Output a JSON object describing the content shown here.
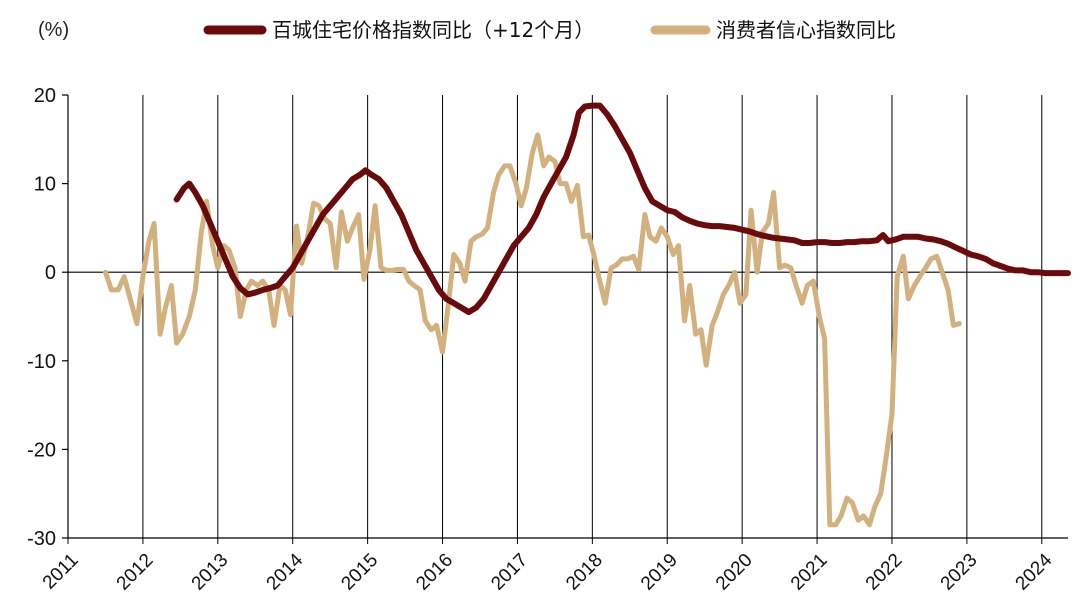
{
  "chart_data": {
    "type": "line",
    "unit_label": "(%)",
    "ylim": [
      -30,
      20
    ],
    "yticks": [
      "20",
      "10",
      "0",
      "-10",
      "-20",
      "-30"
    ],
    "ytick_values": [
      20,
      10,
      0,
      -10,
      -20,
      -30
    ],
    "xlim": [
      2011,
      2024.35
    ],
    "xticks": [
      "2011",
      "2012",
      "2013",
      "2014",
      "2015",
      "2016",
      "2017",
      "2018",
      "2019",
      "2020",
      "2021",
      "2022",
      "2023",
      "2024"
    ],
    "xtick_values": [
      2011,
      2012,
      2013,
      2014,
      2015,
      2016,
      2017,
      2018,
      2019,
      2020,
      2021,
      2022,
      2023,
      2024
    ],
    "legend_position": "top",
    "series": [
      {
        "name": "百城住宅价格指数同比（+12个月）",
        "color": "#6b0a0a",
        "points": [
          [
            2012.45,
            8.2
          ],
          [
            2012.55,
            9.5
          ],
          [
            2012.62,
            10.0
          ],
          [
            2012.7,
            9.0
          ],
          [
            2012.8,
            7.5
          ],
          [
            2012.9,
            5.5
          ],
          [
            2013.0,
            3.5
          ],
          [
            2013.1,
            1.5
          ],
          [
            2013.2,
            -0.5
          ],
          [
            2013.3,
            -1.8
          ],
          [
            2013.4,
            -2.5
          ],
          [
            2013.5,
            -2.3
          ],
          [
            2013.6,
            -2.0
          ],
          [
            2013.7,
            -1.8
          ],
          [
            2013.8,
            -1.5
          ],
          [
            2013.9,
            -0.5
          ],
          [
            2014.0,
            0.5
          ],
          [
            2014.1,
            2.0
          ],
          [
            2014.2,
            3.5
          ],
          [
            2014.3,
            5.0
          ],
          [
            2014.4,
            6.5
          ],
          [
            2014.5,
            7.5
          ],
          [
            2014.6,
            8.5
          ],
          [
            2014.7,
            9.5
          ],
          [
            2014.8,
            10.5
          ],
          [
            2014.9,
            11.0
          ],
          [
            2014.97,
            11.5
          ],
          [
            2015.05,
            11.0
          ],
          [
            2015.15,
            10.5
          ],
          [
            2015.25,
            9.5
          ],
          [
            2015.35,
            8.0
          ],
          [
            2015.45,
            6.5
          ],
          [
            2015.55,
            4.5
          ],
          [
            2015.65,
            2.5
          ],
          [
            2015.75,
            1.0
          ],
          [
            2015.85,
            -0.5
          ],
          [
            2015.95,
            -2.0
          ],
          [
            2016.05,
            -3.0
          ],
          [
            2016.15,
            -3.5
          ],
          [
            2016.25,
            -4.0
          ],
          [
            2016.35,
            -4.5
          ],
          [
            2016.45,
            -4.0
          ],
          [
            2016.55,
            -3.0
          ],
          [
            2016.65,
            -1.5
          ],
          [
            2016.75,
            0.0
          ],
          [
            2016.85,
            1.5
          ],
          [
            2016.95,
            3.0
          ],
          [
            2017.05,
            4.0
          ],
          [
            2017.15,
            5.0
          ],
          [
            2017.25,
            6.5
          ],
          [
            2017.35,
            8.5
          ],
          [
            2017.45,
            10.0
          ],
          [
            2017.55,
            11.5
          ],
          [
            2017.65,
            13.0
          ],
          [
            2017.75,
            15.5
          ],
          [
            2017.82,
            18.0
          ],
          [
            2017.9,
            18.7
          ],
          [
            2018.0,
            18.8
          ],
          [
            2018.1,
            18.8
          ],
          [
            2018.2,
            17.8
          ],
          [
            2018.3,
            16.5
          ],
          [
            2018.4,
            15.0
          ],
          [
            2018.5,
            13.5
          ],
          [
            2018.6,
            11.5
          ],
          [
            2018.7,
            9.5
          ],
          [
            2018.8,
            8.0
          ],
          [
            2018.9,
            7.5
          ],
          [
            2019.0,
            7.0
          ],
          [
            2019.1,
            6.8
          ],
          [
            2019.2,
            6.2
          ],
          [
            2019.3,
            5.8
          ],
          [
            2019.4,
            5.5
          ],
          [
            2019.5,
            5.3
          ],
          [
            2019.6,
            5.2
          ],
          [
            2019.7,
            5.2
          ],
          [
            2019.8,
            5.1
          ],
          [
            2019.9,
            5.0
          ],
          [
            2020.0,
            4.8
          ],
          [
            2020.1,
            4.6
          ],
          [
            2020.2,
            4.3
          ],
          [
            2020.3,
            4.1
          ],
          [
            2020.4,
            3.9
          ],
          [
            2020.5,
            3.8
          ],
          [
            2020.6,
            3.7
          ],
          [
            2020.7,
            3.6
          ],
          [
            2020.8,
            3.3
          ],
          [
            2020.9,
            3.3
          ],
          [
            2021.0,
            3.4
          ],
          [
            2021.1,
            3.4
          ],
          [
            2021.2,
            3.3
          ],
          [
            2021.3,
            3.3
          ],
          [
            2021.4,
            3.4
          ],
          [
            2021.5,
            3.4
          ],
          [
            2021.6,
            3.5
          ],
          [
            2021.7,
            3.5
          ],
          [
            2021.8,
            3.6
          ],
          [
            2021.88,
            4.2
          ],
          [
            2021.95,
            3.5
          ],
          [
            2022.05,
            3.7
          ],
          [
            2022.15,
            4.0
          ],
          [
            2022.25,
            4.0
          ],
          [
            2022.35,
            4.0
          ],
          [
            2022.45,
            3.8
          ],
          [
            2022.55,
            3.7
          ],
          [
            2022.65,
            3.5
          ],
          [
            2022.75,
            3.2
          ],
          [
            2022.85,
            2.8
          ],
          [
            2022.95,
            2.4
          ],
          [
            2023.05,
            2.0
          ],
          [
            2023.15,
            1.8
          ],
          [
            2023.25,
            1.5
          ],
          [
            2023.35,
            1.0
          ],
          [
            2023.45,
            0.7
          ],
          [
            2023.55,
            0.4
          ],
          [
            2023.65,
            0.2
          ],
          [
            2023.75,
            0.2
          ],
          [
            2023.85,
            0.0
          ],
          [
            2023.95,
            0.0
          ],
          [
            2024.05,
            -0.1
          ],
          [
            2024.2,
            -0.1
          ],
          [
            2024.35,
            -0.1
          ]
        ]
      },
      {
        "name": "消费者信心指数同比",
        "color": "#d2b17f",
        "points": [
          [
            2011.5,
            0.0
          ],
          [
            2011.58,
            -2.0
          ],
          [
            2011.67,
            -2.0
          ],
          [
            2011.75,
            -0.5
          ],
          [
            2011.83,
            -3.0
          ],
          [
            2011.92,
            -5.8
          ],
          [
            2012.0,
            -0.5
          ],
          [
            2012.08,
            3.5
          ],
          [
            2012.15,
            5.5
          ],
          [
            2012.23,
            -7.0
          ],
          [
            2012.3,
            -4.0
          ],
          [
            2012.38,
            -1.5
          ],
          [
            2012.45,
            -8.0
          ],
          [
            2012.53,
            -7.0
          ],
          [
            2012.62,
            -5.0
          ],
          [
            2012.7,
            -2.0
          ],
          [
            2012.78,
            4.5
          ],
          [
            2012.85,
            8.0
          ],
          [
            2012.93,
            3.0
          ],
          [
            2013.0,
            0.5
          ],
          [
            2013.08,
            3.0
          ],
          [
            2013.15,
            2.5
          ],
          [
            2013.23,
            0.5
          ],
          [
            2013.3,
            -5.0
          ],
          [
            2013.38,
            -2.0
          ],
          [
            2013.45,
            -1.0
          ],
          [
            2013.53,
            -1.5
          ],
          [
            2013.6,
            -1.0
          ],
          [
            2013.68,
            -2.0
          ],
          [
            2013.75,
            -6.0
          ],
          [
            2013.83,
            -1.5
          ],
          [
            2013.9,
            -2.0
          ],
          [
            2013.97,
            -4.8
          ],
          [
            2014.05,
            5.2
          ],
          [
            2014.12,
            1.0
          ],
          [
            2014.2,
            4.0
          ],
          [
            2014.28,
            7.8
          ],
          [
            2014.35,
            7.5
          ],
          [
            2014.43,
            6.0
          ],
          [
            2014.5,
            5.5
          ],
          [
            2014.58,
            0.5
          ],
          [
            2014.65,
            6.8
          ],
          [
            2014.73,
            3.5
          ],
          [
            2014.8,
            5.0
          ],
          [
            2014.88,
            6.5
          ],
          [
            2014.95,
            -0.8
          ],
          [
            2015.03,
            2.5
          ],
          [
            2015.1,
            7.5
          ],
          [
            2015.18,
            0.5
          ],
          [
            2015.25,
            0.2
          ],
          [
            2015.33,
            0.2
          ],
          [
            2015.4,
            0.3
          ],
          [
            2015.48,
            0.3
          ],
          [
            2015.55,
            -1.0
          ],
          [
            2015.62,
            -1.5
          ],
          [
            2015.7,
            -2.0
          ],
          [
            2015.77,
            -5.5
          ],
          [
            2015.85,
            -6.5
          ],
          [
            2015.92,
            -6.0
          ],
          [
            2016.0,
            -9.0
          ],
          [
            2016.08,
            -3.5
          ],
          [
            2016.15,
            2.0
          ],
          [
            2016.23,
            1.0
          ],
          [
            2016.3,
            -1.0
          ],
          [
            2016.38,
            3.5
          ],
          [
            2016.45,
            4.0
          ],
          [
            2016.53,
            4.3
          ],
          [
            2016.6,
            5.0
          ],
          [
            2016.68,
            9.0
          ],
          [
            2016.75,
            11.0
          ],
          [
            2016.83,
            12.0
          ],
          [
            2016.9,
            12.0
          ],
          [
            2016.98,
            10.0
          ],
          [
            2017.05,
            7.5
          ],
          [
            2017.12,
            9.5
          ],
          [
            2017.2,
            13.5
          ],
          [
            2017.27,
            15.5
          ],
          [
            2017.35,
            12.0
          ],
          [
            2017.42,
            13.0
          ],
          [
            2017.5,
            12.5
          ],
          [
            2017.57,
            10.0
          ],
          [
            2017.65,
            10.0
          ],
          [
            2017.72,
            8.0
          ],
          [
            2017.8,
            9.8
          ],
          [
            2017.88,
            4.0
          ],
          [
            2017.95,
            4.2
          ],
          [
            2018.02,
            2.0
          ],
          [
            2018.1,
            -1.0
          ],
          [
            2018.17,
            -3.5
          ],
          [
            2018.25,
            0.5
          ],
          [
            2018.32,
            0.8
          ],
          [
            2018.4,
            1.5
          ],
          [
            2018.47,
            1.5
          ],
          [
            2018.55,
            1.8
          ],
          [
            2018.62,
            0.3
          ],
          [
            2018.7,
            6.5
          ],
          [
            2018.77,
            4.0
          ],
          [
            2018.85,
            3.5
          ],
          [
            2018.92,
            5.0
          ],
          [
            2019.0,
            4.0
          ],
          [
            2019.08,
            2.0
          ],
          [
            2019.15,
            3.0
          ],
          [
            2019.23,
            -5.5
          ],
          [
            2019.3,
            -1.5
          ],
          [
            2019.38,
            -7.0
          ],
          [
            2019.45,
            -6.5
          ],
          [
            2019.52,
            -10.5
          ],
          [
            2019.6,
            -6.0
          ],
          [
            2019.67,
            -4.5
          ],
          [
            2019.75,
            -2.5
          ],
          [
            2019.82,
            -1.5
          ],
          [
            2019.9,
            0.0
          ],
          [
            2019.97,
            -3.5
          ],
          [
            2020.05,
            -2.5
          ],
          [
            2020.12,
            7.0
          ],
          [
            2020.2,
            0.0
          ],
          [
            2020.27,
            4.5
          ],
          [
            2020.35,
            5.5
          ],
          [
            2020.42,
            9.0
          ],
          [
            2020.5,
            0.5
          ],
          [
            2020.57,
            0.8
          ],
          [
            2020.65,
            0.5
          ],
          [
            2020.72,
            -1.5
          ],
          [
            2020.8,
            -3.5
          ],
          [
            2020.87,
            -1.5
          ],
          [
            2020.95,
            -1.0
          ],
          [
            2021.03,
            -5.0
          ],
          [
            2021.1,
            -7.5
          ],
          [
            2021.17,
            -28.5
          ],
          [
            2021.25,
            -28.5
          ],
          [
            2021.32,
            -27.5
          ],
          [
            2021.4,
            -25.5
          ],
          [
            2021.47,
            -26.0
          ],
          [
            2021.55,
            -28.0
          ],
          [
            2021.62,
            -27.5
          ],
          [
            2021.7,
            -28.5
          ],
          [
            2021.77,
            -26.5
          ],
          [
            2021.85,
            -25.0
          ],
          [
            2021.92,
            -21.0
          ],
          [
            2022.0,
            -16.0
          ],
          [
            2022.07,
            -0.5
          ],
          [
            2022.15,
            1.8
          ],
          [
            2022.22,
            -3.0
          ],
          [
            2022.3,
            -1.5
          ],
          [
            2022.37,
            -0.5
          ],
          [
            2022.45,
            0.5
          ],
          [
            2022.52,
            1.5
          ],
          [
            2022.6,
            1.8
          ],
          [
            2022.67,
            0.0
          ],
          [
            2022.75,
            -2.0
          ],
          [
            2022.82,
            -6.0
          ],
          [
            2022.9,
            -5.8
          ]
        ]
      }
    ]
  }
}
